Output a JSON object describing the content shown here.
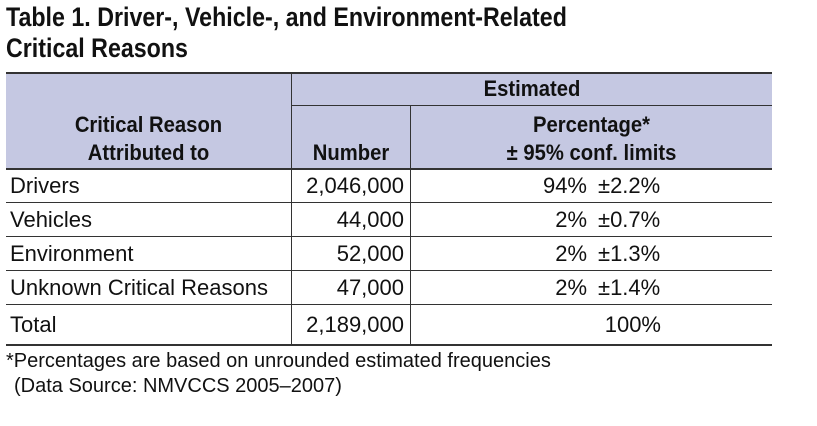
{
  "title": {
    "line1": "Table 1. Driver-, Vehicle-, and Environment-Related",
    "line2": "Critical Reasons"
  },
  "header": {
    "group_label": "Estimated",
    "col_reason_line1": "Critical Reason",
    "col_reason_line2": "Attributed to",
    "col_number": "Number",
    "col_pct_line1": "Percentage*",
    "col_pct_line2": "± 95% conf. limits"
  },
  "rows": [
    {
      "reason": "Drivers",
      "number": "2,046,000",
      "pct": "94%",
      "limit": "±2.2%"
    },
    {
      "reason": "Vehicles",
      "number": "44,000",
      "pct": "2%",
      "limit": "±0.7%"
    },
    {
      "reason": "Environment",
      "number": "52,000",
      "pct": "2%",
      "limit": "±1.3%"
    },
    {
      "reason": "Unknown Critical Reasons",
      "number": "47,000",
      "pct": "2%",
      "limit": "±1.4%"
    }
  ],
  "total": {
    "reason": "Total",
    "number": "2,189,000",
    "pct": "100%"
  },
  "footnote": {
    "note": "*Percentages are based on unrounded estimated frequencies",
    "source": "(Data Source: NMVCCS 2005–2007)"
  },
  "colors": {
    "header_bg": "#c5c8e2",
    "rule": "#333333",
    "text": "#111111"
  }
}
